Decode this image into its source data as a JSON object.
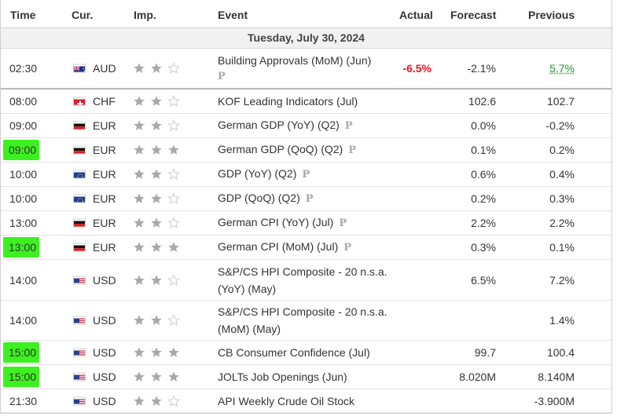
{
  "columns": {
    "time": "Time",
    "currency": "Cur.",
    "importance": "Imp.",
    "event": "Event",
    "actual": "Actual",
    "forecast": "Forecast",
    "previous": "Previous"
  },
  "date_heading": "Tuesday, July 30, 2024",
  "preliminary_icon": "P",
  "highlight_color": "#3df020",
  "colors": {
    "negative": "#e8141e",
    "positive": "#1e9e2a",
    "star_on": "#a9a9a9",
    "star_off": "#d0d0d0"
  },
  "rows": [
    {
      "time": "02:30",
      "highlight": false,
      "flag": "australia-flag-icon",
      "currency": "AUD",
      "importance": 2,
      "event": "Building Approvals (MoM) (Jun)",
      "preliminary": true,
      "actual": "-6.5%",
      "actual_color": "negative",
      "forecast": "-2.1%",
      "previous": "5.7%",
      "previous_color": "positive"
    },
    {
      "time": "08:00",
      "highlight": false,
      "flag": "switzerland-flag-icon",
      "currency": "CHF",
      "importance": 2,
      "event": "KOF Leading Indicators (Jul)",
      "preliminary": false,
      "actual": "",
      "forecast": "102.6",
      "previous": "102.7"
    },
    {
      "time": "09:00",
      "highlight": false,
      "flag": "germany-flag-icon",
      "currency": "EUR",
      "importance": 2,
      "event": "German GDP (YoY) (Q2)",
      "preliminary": true,
      "actual": "",
      "forecast": "0.0%",
      "previous": "-0.2%"
    },
    {
      "time": "09:00",
      "highlight": true,
      "flag": "germany-flag-icon",
      "currency": "EUR",
      "importance": 3,
      "event": "German GDP (QoQ) (Q2)",
      "preliminary": true,
      "actual": "",
      "forecast": "0.1%",
      "previous": "0.2%"
    },
    {
      "time": "10:00",
      "highlight": false,
      "flag": "eu-flag-icon",
      "currency": "EUR",
      "importance": 2,
      "event": "GDP (YoY) (Q2)",
      "preliminary": true,
      "actual": "",
      "forecast": "0.6%",
      "previous": "0.4%"
    },
    {
      "time": "10:00",
      "highlight": false,
      "flag": "eu-flag-icon",
      "currency": "EUR",
      "importance": 2,
      "event": "GDP (QoQ) (Q2)",
      "preliminary": true,
      "actual": "",
      "forecast": "0.2%",
      "previous": "0.3%"
    },
    {
      "time": "13:00",
      "highlight": false,
      "flag": "germany-flag-icon",
      "currency": "EUR",
      "importance": 2,
      "event": "German CPI (YoY) (Jul)",
      "preliminary": true,
      "actual": "",
      "forecast": "2.2%",
      "previous": "2.2%"
    },
    {
      "time": "13:00",
      "highlight": true,
      "flag": "germany-flag-icon",
      "currency": "EUR",
      "importance": 3,
      "event": "German CPI (MoM) (Jul)",
      "preliminary": true,
      "actual": "",
      "forecast": "0.3%",
      "previous": "0.1%"
    },
    {
      "time": "14:00",
      "highlight": false,
      "flag": "usa-flag-icon",
      "currency": "USD",
      "importance": 2,
      "event": "S&P/CS HPI Composite - 20 n.s.a. (YoY) (May)",
      "preliminary": false,
      "actual": "",
      "forecast": "6.5%",
      "previous": "7.2%"
    },
    {
      "time": "14:00",
      "highlight": false,
      "flag": "usa-flag-icon",
      "currency": "USD",
      "importance": 2,
      "event": "S&P/CS HPI Composite - 20 n.s.a. (MoM) (May)",
      "preliminary": false,
      "actual": "",
      "forecast": "",
      "previous": "1.4%"
    },
    {
      "time": "15:00",
      "highlight": true,
      "flag": "usa-flag-icon",
      "currency": "USD",
      "importance": 3,
      "event": "CB Consumer Confidence (Jul)",
      "preliminary": false,
      "actual": "",
      "forecast": "99.7",
      "previous": "100.4"
    },
    {
      "time": "15:00",
      "highlight": true,
      "flag": "usa-flag-icon",
      "currency": "USD",
      "importance": 3,
      "event": "JOLTs Job Openings (Jun)",
      "preliminary": false,
      "actual": "",
      "forecast": "8.020M",
      "previous": "8.140M"
    },
    {
      "time": "21:30",
      "highlight": false,
      "flag": "usa-flag-icon",
      "currency": "USD",
      "importance": 2,
      "event": "API Weekly Crude Oil Stock",
      "preliminary": false,
      "actual": "",
      "forecast": "",
      "previous": "-3.900M"
    }
  ]
}
